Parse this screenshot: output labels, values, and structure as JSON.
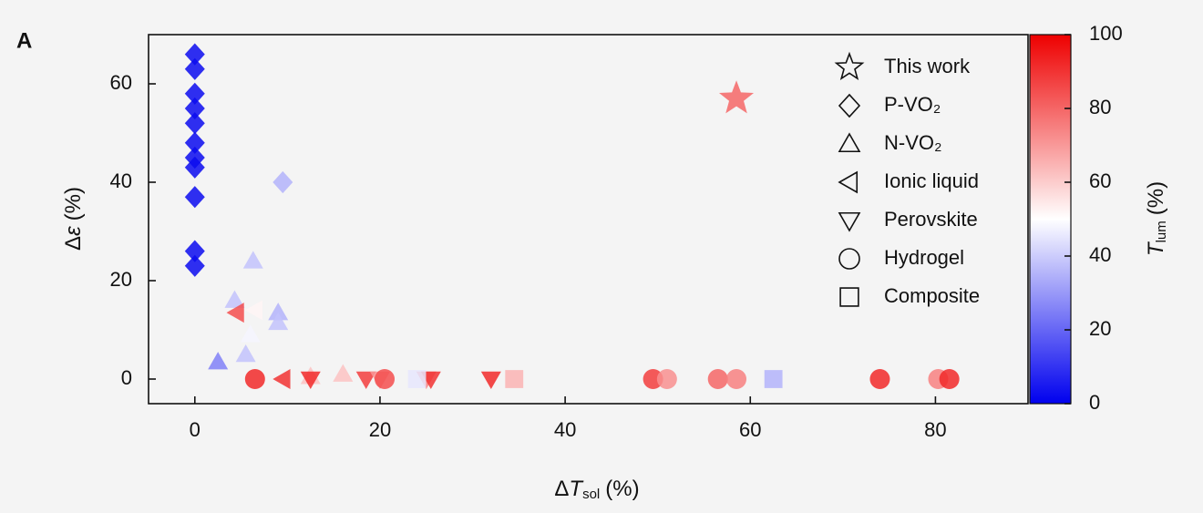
{
  "chart_data": {
    "type": "scatter",
    "panel_label": "A",
    "xlabel": [
      "Δ",
      "T",
      "sol",
      "(%)"
    ],
    "ylabel": [
      "Δ",
      "ε",
      "(%)"
    ],
    "xlim": [
      -5,
      90
    ],
    "xticks": [
      0,
      20,
      40,
      60,
      80
    ],
    "ylim": [
      -5,
      70
    ],
    "yticks": [
      0,
      20,
      40,
      60
    ],
    "colorbar": {
      "label": [
        "T",
        "lum",
        "(%)"
      ],
      "clim": [
        0,
        100
      ],
      "ticks": [
        0,
        20,
        40,
        60,
        80,
        100
      ],
      "colormap": [
        "#0000ee",
        "#ffffff",
        "#ee0000"
      ]
    },
    "legend": "upper right",
    "series": [
      {
        "name": "This work",
        "marker": "star",
        "x": [
          58.5
        ],
        "y": [
          57
        ],
        "c": [
          80
        ]
      },
      {
        "name": "P-VO₂",
        "marker": "diamond",
        "x": [
          0,
          0,
          0,
          0,
          0,
          0,
          0,
          0,
          0,
          0,
          0,
          9.5
        ],
        "y": [
          66,
          63,
          58,
          55,
          52,
          48,
          45,
          43,
          37,
          26,
          23,
          40
        ],
        "c": [
          2,
          2,
          2,
          2,
          2,
          2,
          2,
          2,
          2,
          2,
          2,
          35
        ]
      },
      {
        "name": "N-VO₂",
        "marker": "triangle-up",
        "x": [
          6.3,
          4.3,
          9,
          9,
          5.5,
          2.5,
          6,
          12.5,
          16
        ],
        "y": [
          24,
          16,
          13.5,
          11.5,
          5,
          3.5,
          9,
          0.5,
          1
        ],
        "c": [
          38,
          38,
          35,
          38,
          38,
          25,
          48,
          62,
          62
        ]
      },
      {
        "name": "Ionic liquid",
        "marker": "triangle-left",
        "x": [
          4.5,
          6.5,
          9.5
        ],
        "y": [
          13.5,
          14,
          0
        ],
        "c": [
          85,
          52,
          90
        ]
      },
      {
        "name": "Perovskite",
        "marker": "triangle-down",
        "x": [
          12.5,
          18.5,
          20,
          25,
          25.5,
          32
        ],
        "y": [
          0,
          0,
          0,
          0,
          0,
          0
        ],
        "c": [
          92,
          88,
          70,
          75,
          90,
          92
        ]
      },
      {
        "name": "Hydrogel",
        "marker": "circle",
        "x": [
          6.5,
          20.5,
          49.5,
          51,
          56.5,
          58.5,
          74,
          80.3,
          81.5
        ],
        "y": [
          0,
          0,
          0,
          0,
          0,
          0,
          0,
          0,
          0
        ],
        "c": [
          92,
          85,
          88,
          72,
          80,
          75,
          92,
          75,
          92
        ]
      },
      {
        "name": "Composite",
        "marker": "square",
        "x": [
          24,
          34.5,
          62.5
        ],
        "y": [
          0,
          0,
          0
        ],
        "c": [
          45,
          65,
          35
        ]
      }
    ]
  }
}
